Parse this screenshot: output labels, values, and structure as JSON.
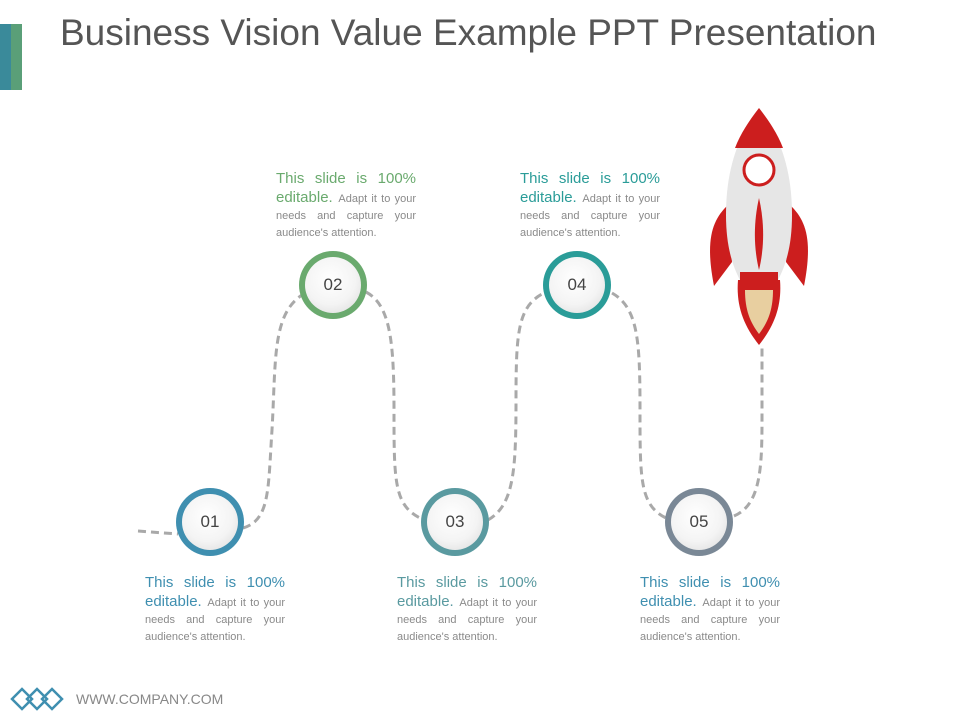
{
  "slide": {
    "title": "Business Vision Value Example PPT Presentation",
    "footer_url": "WWW.COMPANY.COM"
  },
  "colors": {
    "accent_teal": "#3a8a9a",
    "accent_green": "#5a9f78",
    "step_01": "#3f8fb0",
    "step_02": "#6aaa6e",
    "step_03": "#5a9aa0",
    "step_04": "#2a9c98",
    "step_05": "#7a8896",
    "rocket_red": "#cc1e1e",
    "rocket_body": "#e6e6e6",
    "flame": "#e8cfa0",
    "dashed_path": "#a9a9a9"
  },
  "steps": [
    {
      "number": "01",
      "headline": "This slide is 100% editable.",
      "body": "Adapt it to your needs and capture your audience's attention."
    },
    {
      "number": "02",
      "headline": "This slide is 100% editable.",
      "body": "Adapt it to your needs and capture your audience's attention."
    },
    {
      "number": "03",
      "headline": "This slide is 100% editable.",
      "body": "Adapt it to your needs and capture your audience's attention."
    },
    {
      "number": "04",
      "headline": "This slide is 100% editable.",
      "body": "Adapt it to your needs and capture your audience's attention."
    },
    {
      "number": "05",
      "headline": "This slide is 100% editable.",
      "body": "Adapt it to your needs and capture your audience's attention."
    }
  ],
  "icons": {
    "logo": "diamond-chain-logo-icon",
    "rocket": "rocket-icon"
  }
}
